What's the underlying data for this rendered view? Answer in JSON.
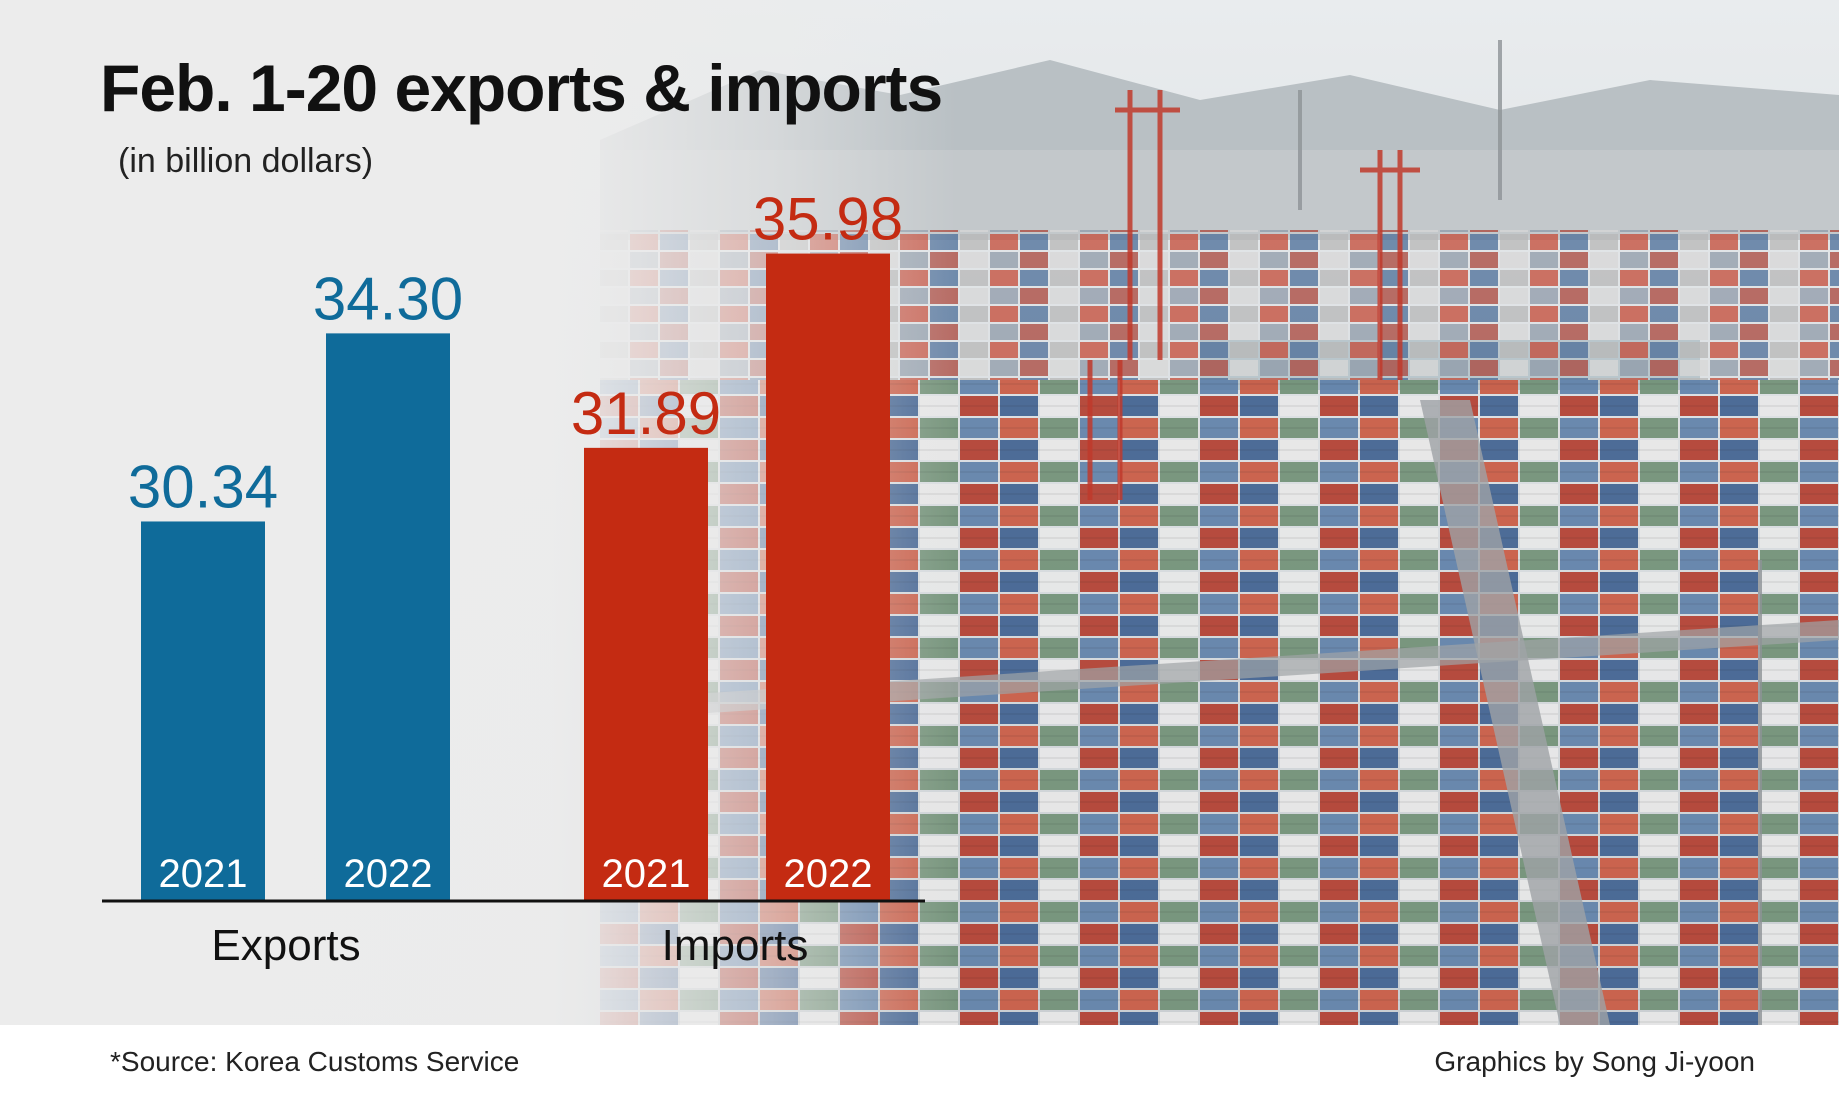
{
  "title": "Feb. 1-20 exports & imports",
  "subtitle": "(in billion dollars)",
  "source": "*Source: Korea Customs Service",
  "credit": "Graphics by Song Ji-yoon",
  "colors": {
    "exports": "#0f6b9a",
    "imports": "#c42b12"
  },
  "chart_data": {
    "type": "bar",
    "title": "Feb. 1-20 exports & imports",
    "subtitle": "(in billion dollars)",
    "groups": [
      "Exports",
      "Imports"
    ],
    "categories": [
      "2021",
      "2022"
    ],
    "series": [
      {
        "name": "Exports",
        "categories": [
          "2021",
          "2022"
        ],
        "values": [
          30.34,
          34.3
        ],
        "labels": [
          "30.34",
          "34.30"
        ],
        "color": "#0f6b9a"
      },
      {
        "name": "Imports",
        "categories": [
          "2021",
          "2022"
        ],
        "values": [
          31.89,
          35.98
        ],
        "labels": [
          "31.89",
          "35.98"
        ],
        "color": "#c42b12"
      }
    ],
    "grid": false,
    "legend": "none"
  }
}
